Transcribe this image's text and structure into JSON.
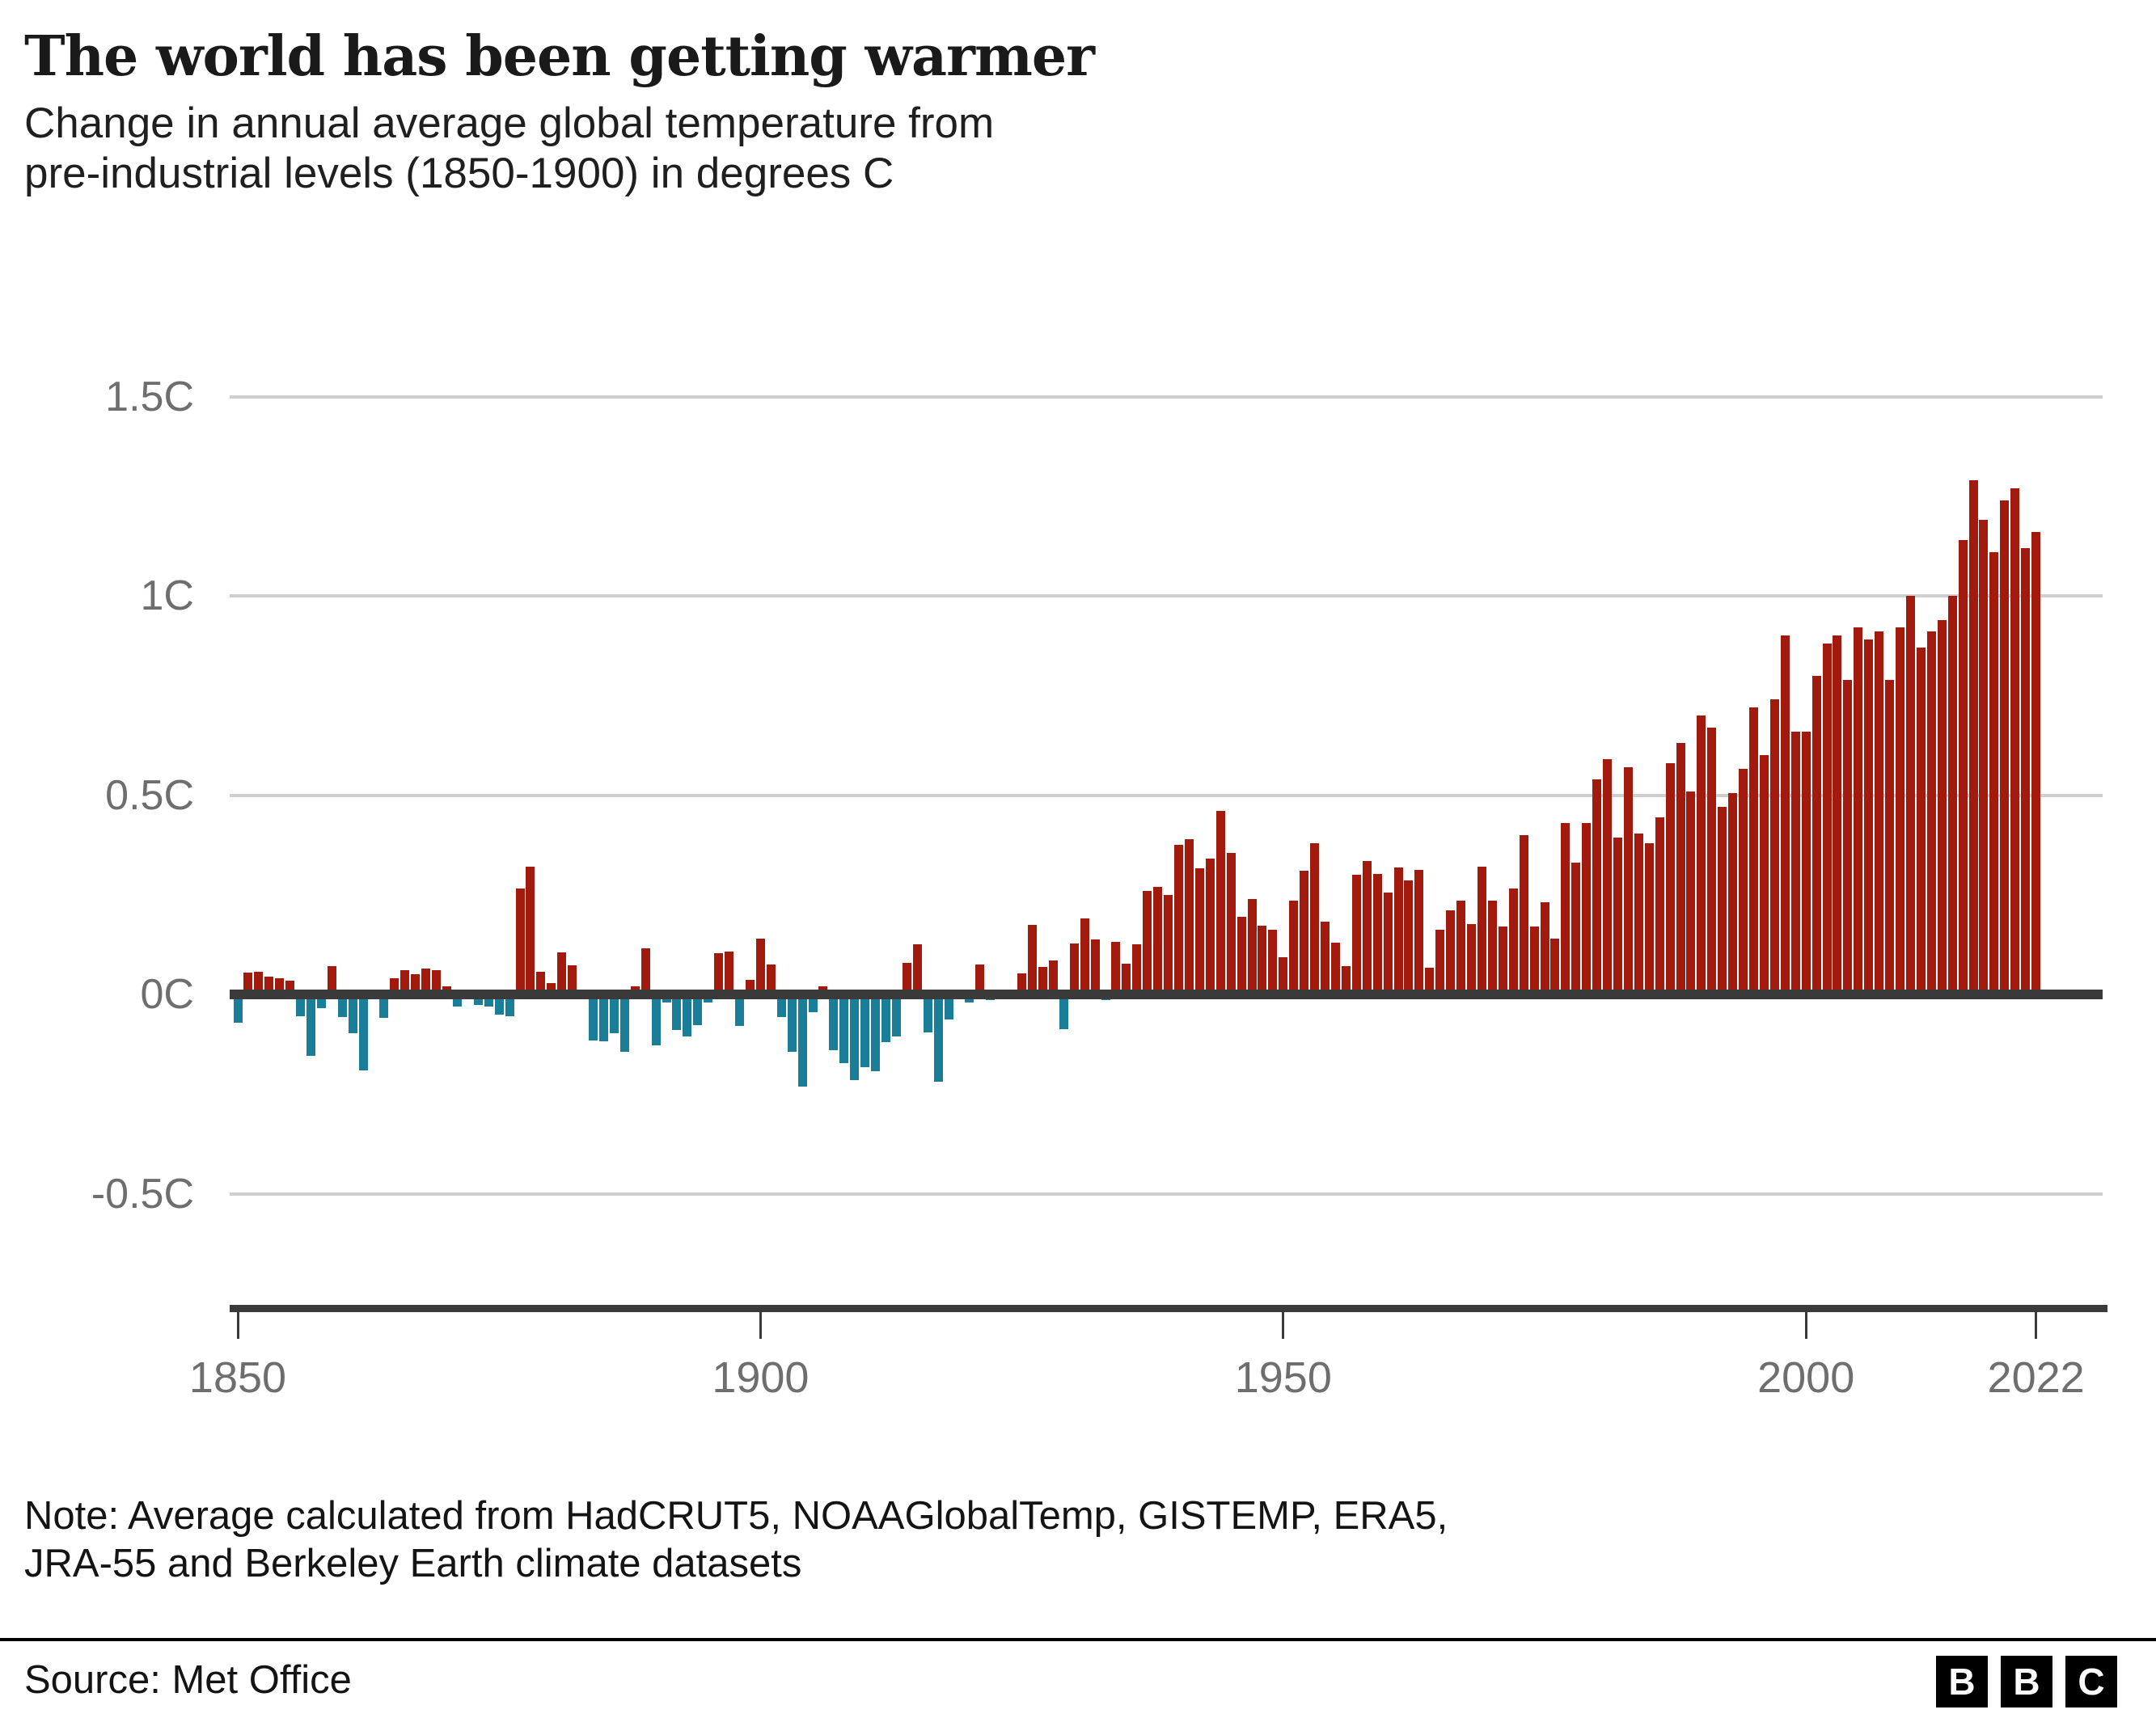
{
  "header": {
    "title": "The world has been getting warmer",
    "subtitle_line1": "Change in annual average global temperature from",
    "subtitle_line2": "pre-industrial levels (1850-1900) in degrees C"
  },
  "footer": {
    "note_line1": "Note: Average calculated from HadCRUT5, NOAAGlobalTemp, GISTEMP, ERA5,",
    "note_line2": "JRA-55 and Berkeley Earth climate datasets",
    "source": "Source: Met Office",
    "logo_letters": [
      "B",
      "B",
      "C"
    ]
  },
  "chart_data": {
    "type": "bar",
    "title": "The world has been getting warmer",
    "subtitle": "Change in annual average global temperature from pre-industrial levels (1850-1900) in degrees C",
    "unit": "degrees C",
    "x_start_year": 1850,
    "x_end_year": 2022,
    "x_ticks": [
      1850,
      1900,
      1950,
      2000,
      2022
    ],
    "x_tick_labels": [
      "1850",
      "1900",
      "1950",
      "2000",
      "2022"
    ],
    "y_axis_labels": [
      {
        "label": "1.5C",
        "value": 1.5
      },
      {
        "label": "1C",
        "value": 1.0
      },
      {
        "label": "0.5C",
        "value": 0.5
      },
      {
        "label": "0C",
        "value": 0.0
      },
      {
        "label": "-0.5C",
        "value": -0.5
      }
    ],
    "gridline_values": [
      1.5,
      1.0,
      0.5,
      -0.5
    ],
    "ylim": [
      -0.75,
      1.55
    ],
    "grid": true,
    "legend": "none",
    "colors": {
      "positive": "#a11a0d",
      "negative": "#1b7e99",
      "axis": "#3a3a3a",
      "grid": "#cfcfcf",
      "tick_label": "#6e6e6e"
    },
    "values": [
      -0.07,
      0.055,
      0.057,
      0.045,
      0.04,
      0.035,
      -0.054,
      -0.155,
      -0.034,
      0.072,
      -0.057,
      -0.098,
      -0.19,
      -0.012,
      -0.058,
      0.04,
      0.06,
      0.05,
      0.064,
      0.06,
      0.02,
      -0.03,
      0.01,
      -0.026,
      -0.03,
      -0.05,
      -0.055,
      0.265,
      0.32,
      0.056,
      0.028,
      0.105,
      0.073,
      0.012,
      -0.115,
      -0.117,
      -0.098,
      -0.145,
      0.02,
      0.115,
      -0.128,
      -0.02,
      -0.09,
      -0.105,
      -0.078,
      -0.02,
      0.103,
      0.108,
      -0.08,
      0.037,
      0.14,
      0.076,
      -0.057,
      -0.145,
      -0.232,
      -0.044,
      0.02,
      -0.139,
      -0.172,
      -0.216,
      -0.182,
      -0.192,
      -0.12,
      -0.105,
      0.08,
      0.126,
      -0.095,
      -0.22,
      -0.063,
      -0.012,
      -0.02,
      0.075,
      -0.015,
      0.005,
      -0.005,
      0.053,
      0.174,
      0.068,
      0.086,
      -0.087,
      0.128,
      0.19,
      0.138,
      -0.015,
      0.131,
      0.077,
      0.126,
      0.26,
      0.27,
      0.25,
      0.375,
      0.39,
      0.316,
      0.34,
      0.46,
      0.355,
      0.195,
      0.24,
      0.172,
      0.163,
      0.093,
      0.235,
      0.31,
      0.38,
      0.182,
      0.13,
      0.072,
      0.3,
      0.334,
      0.303,
      0.255,
      0.318,
      0.287,
      0.312,
      0.066,
      0.163,
      0.21,
      0.235,
      0.176,
      0.32,
      0.235,
      0.17,
      0.265,
      0.4,
      0.17,
      0.232,
      0.14,
      0.43,
      0.33,
      0.43,
      0.54,
      0.59,
      0.394,
      0.57,
      0.404,
      0.38,
      0.444,
      0.58,
      0.63,
      0.51,
      0.7,
      0.67,
      0.47,
      0.505,
      0.565,
      0.72,
      0.6,
      0.74,
      0.9,
      0.66,
      0.66,
      0.8,
      0.88,
      0.9,
      0.79,
      0.92,
      0.89,
      0.91,
      0.79,
      0.92,
      1.0,
      0.87,
      0.91,
      0.94,
      1.0,
      1.14,
      1.29,
      1.19,
      1.11,
      1.24,
      1.27,
      1.12,
      1.16
    ]
  }
}
